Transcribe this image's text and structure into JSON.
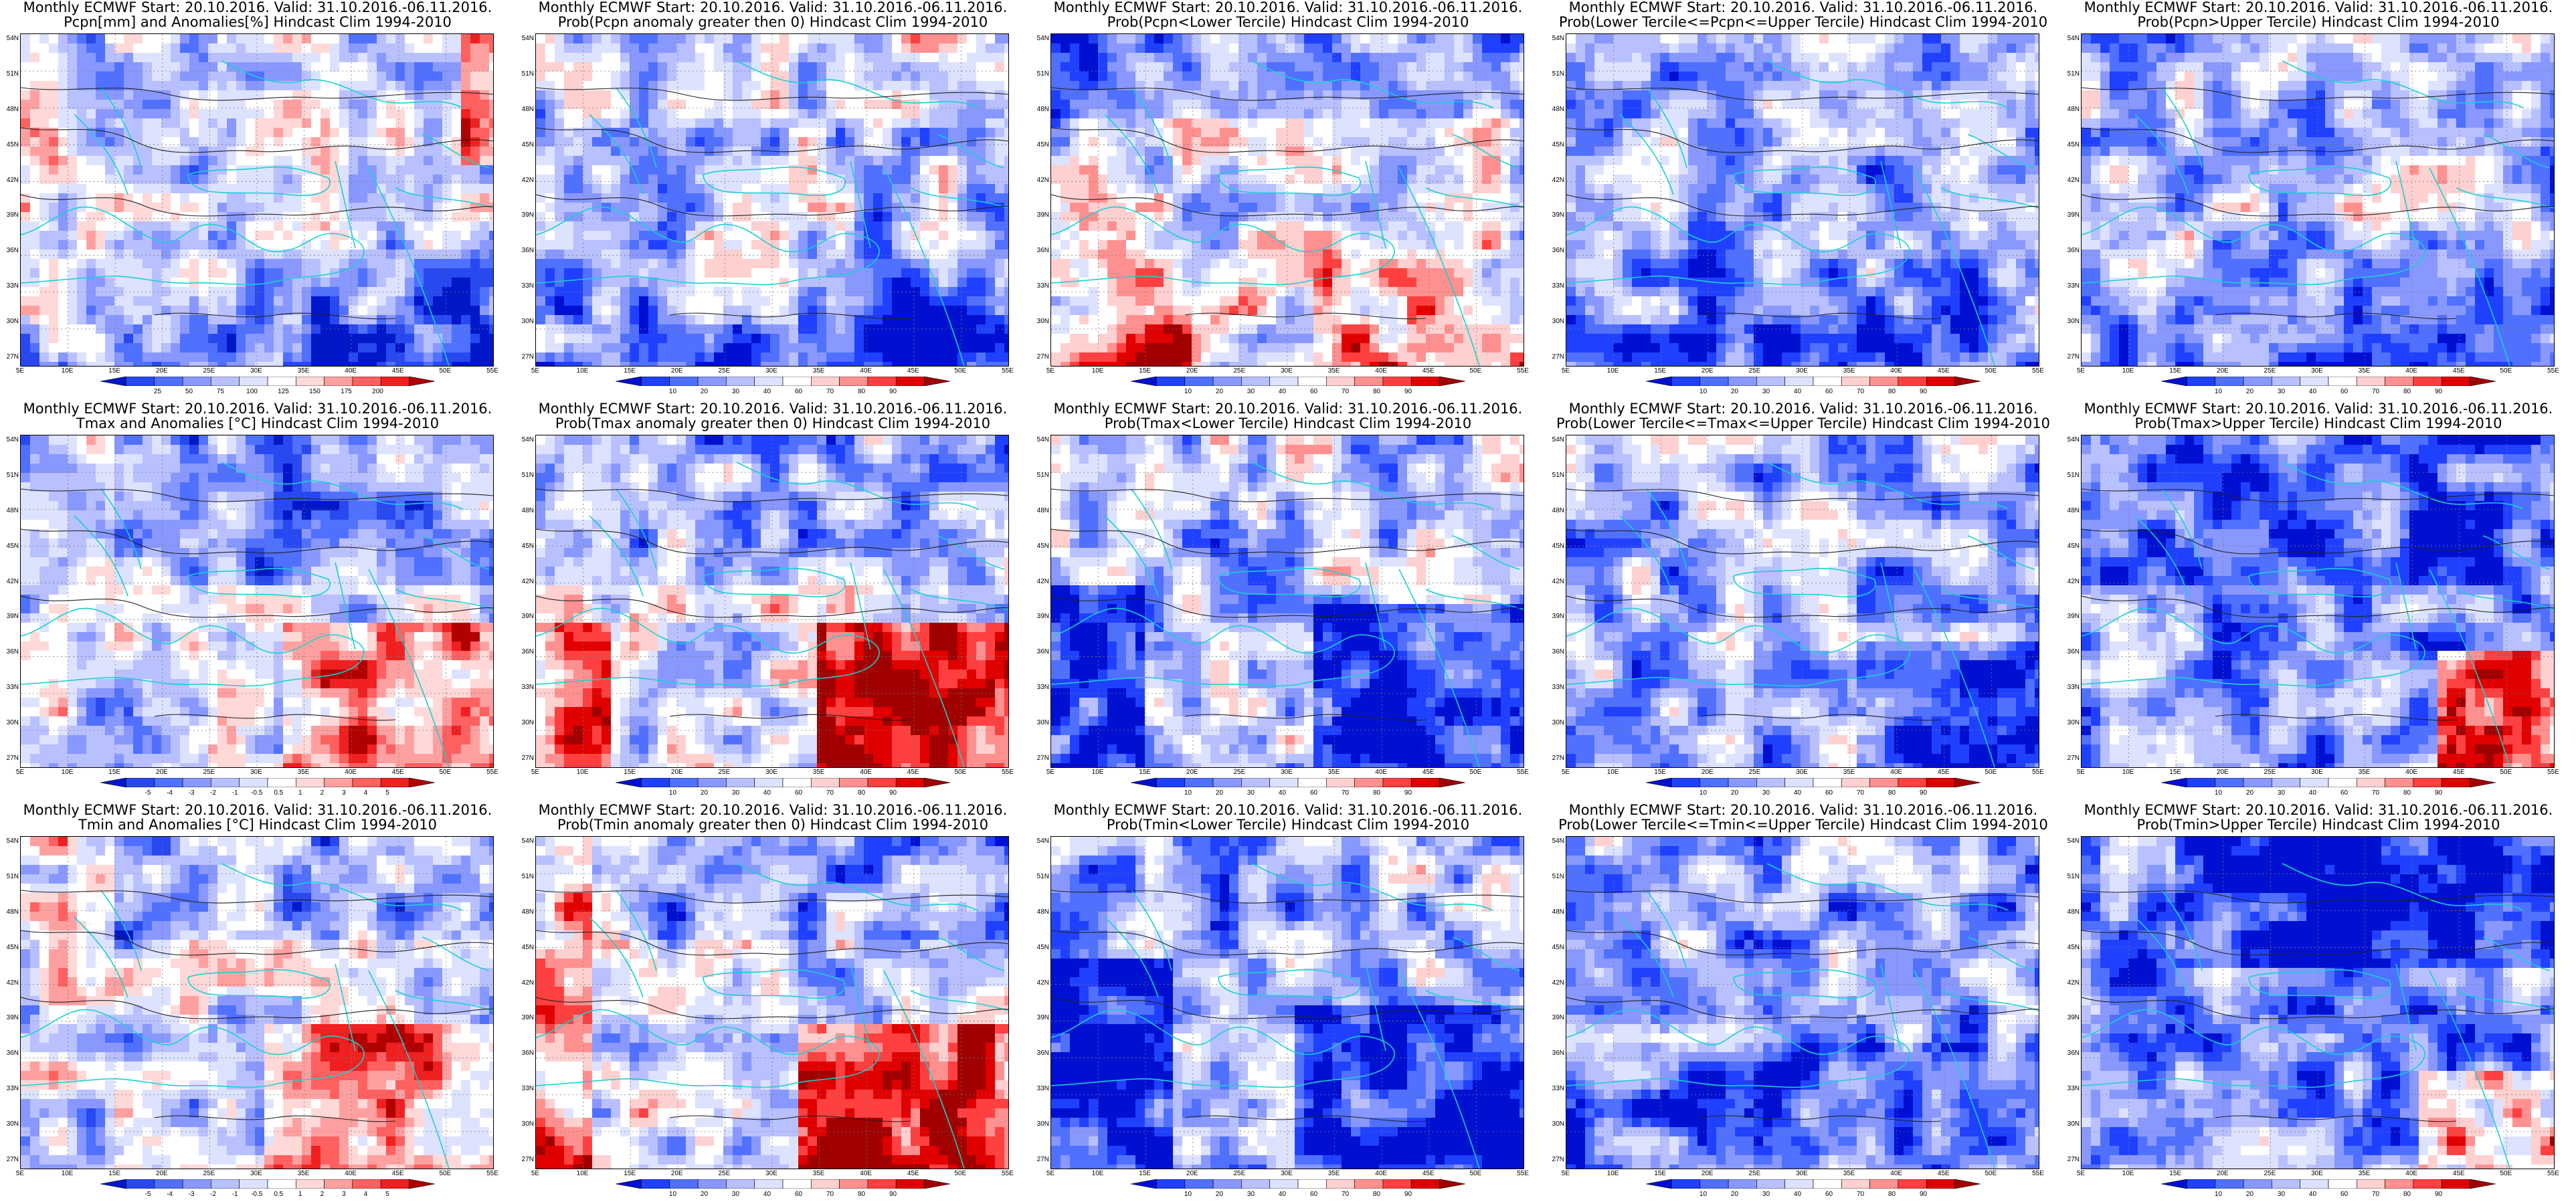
{
  "lat_ticks": [
    "54N",
    "51N",
    "48N",
    "45N",
    "42N",
    "39N",
    "36N",
    "33N",
    "30N",
    "27N"
  ],
  "lon_ticks": [
    "5E",
    "10E",
    "15E",
    "20E",
    "25E",
    "30E",
    "35E",
    "40E",
    "45E",
    "50E",
    "55E"
  ],
  "palettes": {
    "prob": [
      "#0010d0",
      "#2040ff",
      "#5070ff",
      "#8898ff",
      "#b8c0ff",
      "#dde2ff",
      "#ffffff",
      "#ffd0d0",
      "#ff9090",
      "#ff4040",
      "#e00000",
      "#a00000"
    ],
    "anom": [
      "#0018c8",
      "#2848f0",
      "#5070ff",
      "#8898ff",
      "#b8c0ff",
      "#dde2ff",
      "#ffffff",
      "#ffd8d8",
      "#ffa0a0",
      "#ff6060",
      "#f02020",
      "#b00000"
    ]
  },
  "panels": [
    {
      "title_line1": "Monthly ECMWF Start: 20.10.2016. Valid: 31.10.2016.-06.11.2016.",
      "title_line2": "Pcpn[mm] and Anomalies[%] Hindcast Clim 1994-2010",
      "colorbar_labels": [
        "25",
        "50",
        "75",
        "100",
        "125",
        "150",
        "175",
        "200"
      ],
      "palette": "anom",
      "field": "pcpn_anom"
    },
    {
      "title_line1": "Monthly ECMWF Start: 20.10.2016. Valid: 31.10.2016.-06.11.2016.",
      "title_line2": "Prob(Pcpn anomaly greater then 0) Hindcast Clim 1994-2010",
      "colorbar_labels": [
        "10",
        "20",
        "30",
        "40",
        "60",
        "70",
        "80",
        "90"
      ],
      "palette": "prob",
      "field": "pcpn_pos"
    },
    {
      "title_line1": "Monthly ECMWF Start: 20.10.2016. Valid: 31.10.2016.-06.11.2016.",
      "title_line2": "Prob(Pcpn<Lower Tercile) Hindcast Clim 1994-2010",
      "colorbar_labels": [
        "10",
        "20",
        "30",
        "40",
        "60",
        "70",
        "80",
        "90"
      ],
      "palette": "prob",
      "field": "pcpn_low"
    },
    {
      "title_line1": "Monthly ECMWF Start: 20.10.2016. Valid: 31.10.2016.-06.11.2016.",
      "title_line2": "Prob(Lower Tercile<=Pcpn<=Upper Tercile) Hindcast Clim 1994-2010",
      "colorbar_labels": [
        "10",
        "20",
        "30",
        "40",
        "60",
        "70",
        "80",
        "90"
      ],
      "palette": "prob",
      "field": "pcpn_mid"
    },
    {
      "title_line1": "Monthly ECMWF Start: 20.10.2016. Valid: 31.10.2016.-06.11.2016.",
      "title_line2": "Prob(Pcpn>Upper Tercile) Hindcast Clim 1994-2010",
      "colorbar_labels": [
        "10",
        "20",
        "30",
        "40",
        "60",
        "70",
        "80",
        "90"
      ],
      "palette": "prob",
      "field": "pcpn_up"
    },
    {
      "title_line1": "Monthly ECMWF Start: 20.10.2016. Valid: 31.10.2016.-06.11.2016.",
      "title_line2": "Tmax and Anomalies [°C] Hindcast Clim 1994-2010",
      "colorbar_labels": [
        "-5",
        "-4",
        "-3",
        "-2",
        "-1",
        "-0.5",
        "0.5",
        "1",
        "2",
        "3",
        "4",
        "5"
      ],
      "palette": "anom",
      "field": "tmax_anom"
    },
    {
      "title_line1": "Monthly ECMWF Start: 20.10.2016. Valid: 31.10.2016.-06.11.2016.",
      "title_line2": "Prob(Tmax anomaly greater then 0) Hindcast Clim 1994-2010",
      "colorbar_labels": [
        "10",
        "20",
        "30",
        "40",
        "60",
        "70",
        "80",
        "90"
      ],
      "palette": "prob",
      "field": "tmax_pos"
    },
    {
      "title_line1": "Monthly ECMWF Start: 20.10.2016. Valid: 31.10.2016.-06.11.2016.",
      "title_line2": "Prob(Tmax<Lower Tercile) Hindcast Clim 1994-2010",
      "colorbar_labels": [
        "10",
        "20",
        "30",
        "40",
        "60",
        "70",
        "80",
        "90"
      ],
      "palette": "prob",
      "field": "tmax_low"
    },
    {
      "title_line1": "Monthly ECMWF Start: 20.10.2016. Valid: 31.10.2016.-06.11.2016.",
      "title_line2": "Prob(Lower Tercile<=Tmax<=Upper Tercile) Hindcast Clim 1994-2010",
      "colorbar_labels": [
        "10",
        "20",
        "30",
        "40",
        "60",
        "70",
        "80",
        "90"
      ],
      "palette": "prob",
      "field": "tmax_mid"
    },
    {
      "title_line1": "Monthly ECMWF Start: 20.10.2016. Valid: 31.10.2016.-06.11.2016.",
      "title_line2": "Prob(Tmax>Upper Tercile) Hindcast Clim 1994-2010",
      "colorbar_labels": [
        "10",
        "20",
        "30",
        "40",
        "60",
        "70",
        "80",
        "90"
      ],
      "palette": "prob",
      "field": "tmax_up"
    },
    {
      "title_line1": "Monthly ECMWF Start: 20.10.2016. Valid: 31.10.2016.-06.11.2016.",
      "title_line2": "Tmin and Anomalies [°C] Hindcast Clim 1994-2010",
      "colorbar_labels": [
        "-5",
        "-4",
        "-3",
        "-2",
        "-1",
        "-0.5",
        "0.5",
        "1",
        "2",
        "3",
        "4",
        "5"
      ],
      "palette": "anom",
      "field": "tmin_anom"
    },
    {
      "title_line1": "Monthly ECMWF Start: 20.10.2016. Valid: 31.10.2016.-06.11.2016.",
      "title_line2": "Prob(Tmin anomaly greater then 0) Hindcast Clim 1994-2010",
      "colorbar_labels": [
        "10",
        "20",
        "30",
        "40",
        "60",
        "70",
        "80",
        "90"
      ],
      "palette": "prob",
      "field": "tmin_pos"
    },
    {
      "title_line1": "Monthly ECMWF Start: 20.10.2016. Valid: 31.10.2016.-06.11.2016.",
      "title_line2": "Prob(Tmin<Lower Tercile) Hindcast Clim 1994-2010",
      "colorbar_labels": [
        "10",
        "20",
        "30",
        "40",
        "60",
        "70",
        "80",
        "90"
      ],
      "palette": "prob",
      "field": "tmin_low"
    },
    {
      "title_line1": "Monthly ECMWF Start: 20.10.2016. Valid: 31.10.2016.-06.11.2016.",
      "title_line2": "Prob(Lower Tercile<=Tmin<=Upper Tercile) Hindcast Clim 1994-2010",
      "colorbar_labels": [
        "10",
        "20",
        "30",
        "40",
        "60",
        "70",
        "80",
        "90"
      ],
      "palette": "prob",
      "field": "tmin_mid"
    },
    {
      "title_line1": "Monthly ECMWF Start: 20.10.2016. Valid: 31.10.2016.-06.11.2016.",
      "title_line2": "Prob(Tmin>Upper Tercile) Hindcast Clim 1994-2010",
      "colorbar_labels": [
        "10",
        "20",
        "30",
        "40",
        "60",
        "70",
        "80",
        "90"
      ],
      "palette": "prob",
      "field": "tmin_up"
    }
  ]
}
